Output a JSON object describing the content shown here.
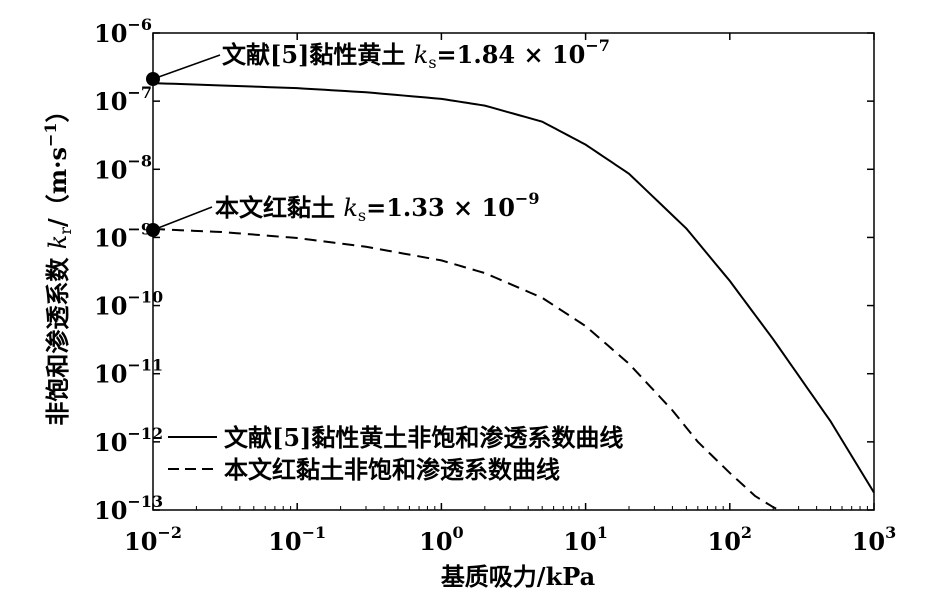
{
  "chart_data": {
    "type": "line",
    "x_scale": "log",
    "y_scale": "log",
    "xlabel": "基质吸力/kPa",
    "ylabel_prefix": "非饱和渗透系数 ",
    "ylabel_k": "k",
    "ylabel_k_sub": "r",
    "ylabel_unit": "/（m·s",
    "ylabel_unit_sup": "−1",
    "ylabel_unit_close": "）",
    "xlim": [
      0.01,
      1000
    ],
    "ylim": [
      1e-13,
      1e-06
    ],
    "x_ticks": [
      {
        "value": 0.01,
        "base": "10",
        "exp": "−2"
      },
      {
        "value": 0.1,
        "base": "10",
        "exp": "−1"
      },
      {
        "value": 1,
        "base": "10",
        "exp": "0"
      },
      {
        "value": 10,
        "base": "10",
        "exp": "1"
      },
      {
        "value": 100,
        "base": "10",
        "exp": "2"
      },
      {
        "value": 1000,
        "base": "10",
        "exp": "3"
      }
    ],
    "y_ticks": [
      {
        "value": 1e-13,
        "base": "10",
        "exp": "−13"
      },
      {
        "value": 1e-12,
        "base": "10",
        "exp": "−12"
      },
      {
        "value": 1e-11,
        "base": "10",
        "exp": "−11"
      },
      {
        "value": 1e-10,
        "base": "10",
        "exp": "−10"
      },
      {
        "value": 1e-09,
        "base": "10",
        "exp": "−9"
      },
      {
        "value": 1e-08,
        "base": "10",
        "exp": "−8"
      },
      {
        "value": 1e-07,
        "base": "10",
        "exp": "−7"
      },
      {
        "value": 1e-06,
        "base": "10",
        "exp": "−6"
      }
    ],
    "grid": false,
    "legend_position": "bottom-left",
    "series": [
      {
        "name": "文献[5]黏性黄土非饱和渗透系数曲线",
        "style": "solid",
        "color": "#000000",
        "x": [
          0.01,
          0.03,
          0.1,
          0.3,
          1,
          2,
          5,
          10,
          20,
          50,
          100,
          200,
          500,
          1000
        ],
        "y": [
          1.84e-07,
          1.7e-07,
          1.55e-07,
          1.35e-07,
          1.08e-07,
          8.6e-08,
          5e-08,
          2.3e-08,
          8.6e-09,
          1.35e-09,
          2.3e-10,
          3.2e-11,
          2e-12,
          1.8e-13
        ]
      },
      {
        "name": "本文红黏土非饱和渗透系数曲线",
        "style": "dashed",
        "color": "#000000",
        "x": [
          0.01,
          0.03,
          0.1,
          0.3,
          1,
          2,
          5,
          10,
          20,
          40,
          60,
          100,
          150,
          200,
          220
        ],
        "y": [
          1.33e-09,
          1.2e-09,
          9.8e-10,
          7.3e-10,
          4.6e-10,
          3e-10,
          1.3e-10,
          5e-11,
          1.4e-11,
          2.9e-12,
          1e-12,
          3.5e-13,
          1.6e-13,
          1.1e-13,
          1e-13
        ]
      }
    ],
    "annotations": [
      {
        "text": "文献[5]黏性黄土 ",
        "k": "k",
        "k_sub": "s",
        "eq": "=1.84 × 10",
        "exp": "−7",
        "x": 0.01,
        "y": 1.84e-07
      },
      {
        "text": "本文红黏土 ",
        "k": "k",
        "k_sub": "s",
        "eq": "=1.33 × 10",
        "exp": "−9",
        "x": 0.01,
        "y": 1.33e-09
      }
    ]
  }
}
